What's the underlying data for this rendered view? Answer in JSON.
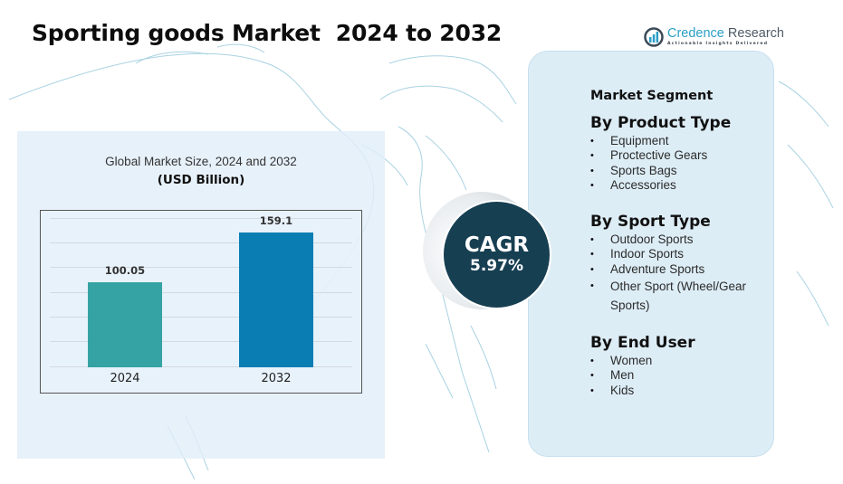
{
  "header": {
    "title": "Sporting goods Market  2024 to 2032"
  },
  "logo": {
    "name_part1": "Credence",
    "name_part2": " Research",
    "tagline": "Actionable Insights Delivered",
    "icon": "bar-chart-logo-icon"
  },
  "chart_panel": {
    "title": "Global Market Size, 2024 and 2032",
    "unit": "(USD Billion)"
  },
  "chart_data": {
    "type": "bar",
    "title": "Global Market Size, 2024 and 2032",
    "subtitle": "(USD Billion)",
    "categories": [
      "2024",
      "2032"
    ],
    "values": [
      100.05,
      159.1
    ],
    "value_labels": [
      "100.05",
      "159.1"
    ],
    "colors": [
      "#35a3a3",
      "#0a7eb3"
    ],
    "xlabel": "",
    "ylabel": "",
    "ylim": [
      0,
      175
    ],
    "grid": true,
    "legend": "none"
  },
  "cagr": {
    "label": "CAGR",
    "value": "5.97%",
    "color": "#173f52"
  },
  "segments": {
    "heading": "Market Segment",
    "groups": [
      {
        "title": "By Product Type",
        "items": [
          "Equipment",
          "Proctective Gears",
          "Sports Bags",
          "Accessories"
        ]
      },
      {
        "title": "By Sport Type",
        "items": [
          "Outdoor Sports",
          "Indoor Sports",
          "Adventure Sports",
          "Other Sport (Wheel/Gear Sports)"
        ]
      },
      {
        "title": "By End User",
        "items": [
          "Women",
          "Men",
          "Kids"
        ]
      }
    ],
    "bullet": "•"
  }
}
